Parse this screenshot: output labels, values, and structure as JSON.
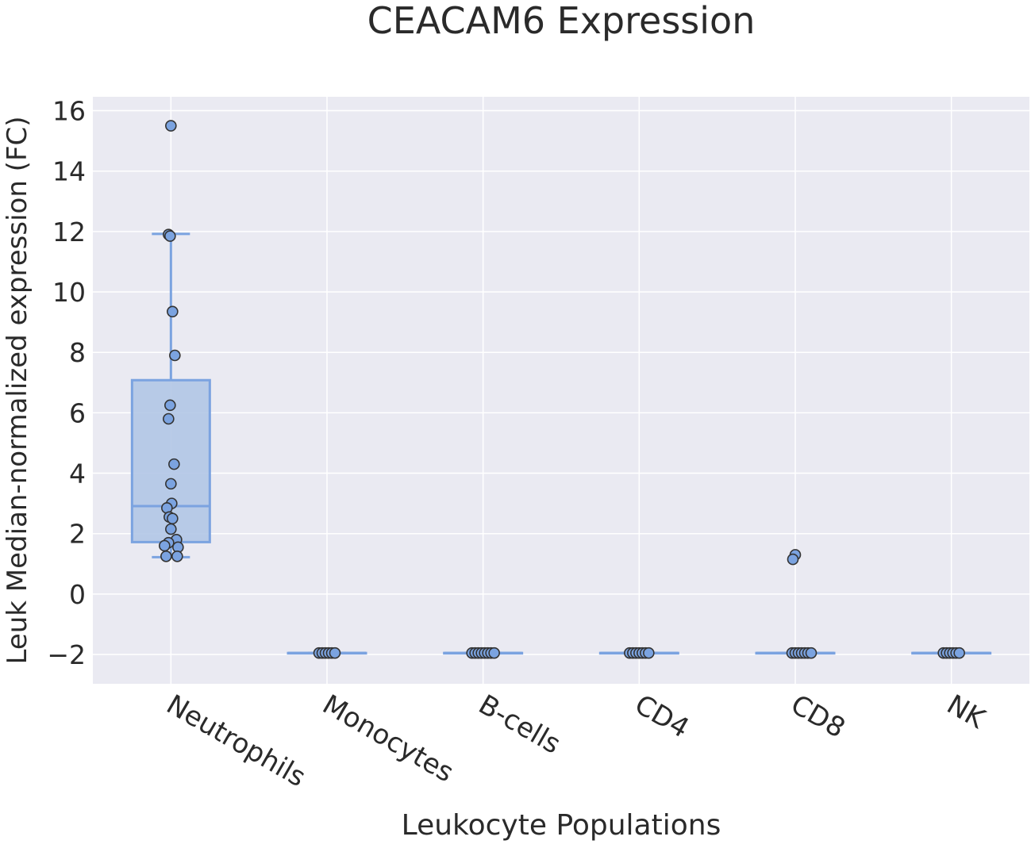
{
  "chart_data": {
    "type": "box",
    "title": "CEACAM6 Expression",
    "xlabel": "Leukocyte Populations",
    "ylabel": "Leuk Median-normalized expression (FC)",
    "ylim": [
      -2.97,
      16.46
    ],
    "yticks": [
      -2,
      0,
      2,
      4,
      6,
      8,
      10,
      12,
      14,
      16
    ],
    "grid": true,
    "colors": {
      "box": "#7ba3e0",
      "box_fill": "#b1c6e6",
      "point": "#7ba3e0",
      "point_edge": "#333333",
      "background": "#eaeaf2",
      "grid": "#ffffff"
    },
    "categories": [
      "Neutrophils",
      "Monocytes",
      "B-cells",
      "CD4",
      "CD8",
      "NK"
    ],
    "boxes": [
      {
        "q1": 1.72,
        "median": 2.91,
        "q3": 7.08,
        "whisker_low": 1.22,
        "whisker_high": 11.92
      },
      {
        "q1": -1.95,
        "median": -1.95,
        "q3": -1.95,
        "whisker_low": -1.95,
        "whisker_high": -1.95
      },
      {
        "q1": -1.95,
        "median": -1.95,
        "q3": -1.95,
        "whisker_low": -1.95,
        "whisker_high": -1.95
      },
      {
        "q1": -1.95,
        "median": -1.95,
        "q3": -1.95,
        "whisker_low": -1.95,
        "whisker_high": -1.95
      },
      {
        "q1": -1.95,
        "median": -1.95,
        "q3": -1.95,
        "whisker_low": -1.95,
        "whisker_high": -1.95
      },
      {
        "q1": -1.95,
        "median": -1.95,
        "q3": -1.95,
        "whisker_low": -1.95,
        "whisker_high": -1.95
      }
    ],
    "points": [
      [
        15.5,
        11.9,
        11.85,
        9.35,
        7.9,
        6.25,
        5.8,
        4.3,
        3.65,
        3.0,
        2.85,
        2.55,
        2.5,
        2.15,
        1.8,
        1.7,
        1.6,
        1.55,
        1.25,
        1.25
      ],
      [
        -1.95,
        -1.95,
        -1.95,
        -1.95,
        -1.95,
        -1.95
      ],
      [
        -1.95,
        -1.95,
        -1.95,
        -1.95,
        -1.95,
        -1.95,
        -1.95,
        -1.95
      ],
      [
        -1.95,
        -1.95,
        -1.95,
        -1.95,
        -1.95,
        -1.95,
        -1.95
      ],
      [
        1.3,
        1.15,
        -1.95,
        -1.95,
        -1.95,
        -1.95,
        -1.95,
        -1.95,
        -1.95
      ],
      [
        -1.95,
        -1.95,
        -1.95,
        -1.95,
        -1.95,
        -1.95
      ]
    ]
  }
}
